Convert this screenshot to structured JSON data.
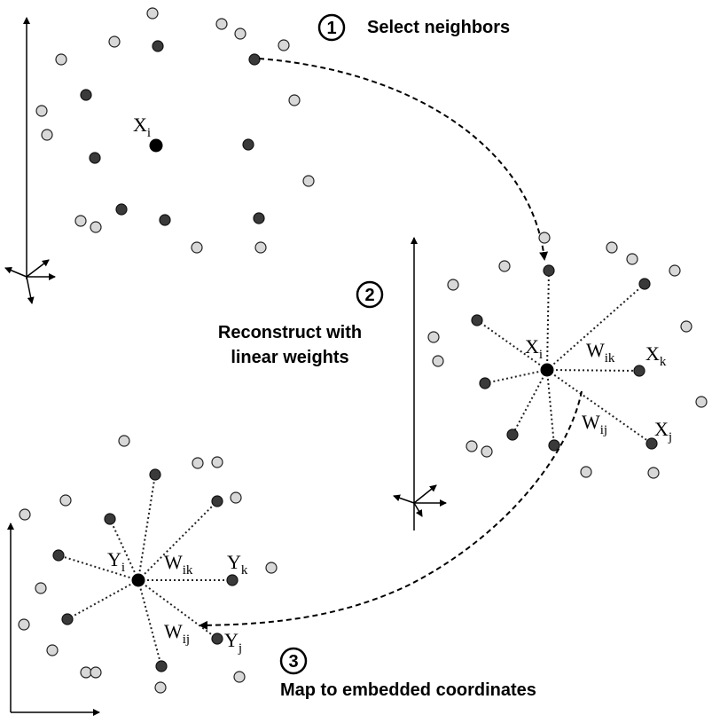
{
  "steps": [
    {
      "number": "1",
      "label": "Select neighbors"
    },
    {
      "number": "2",
      "label_line1": "Reconstruct with",
      "label_line2": "linear weights"
    },
    {
      "number": "3",
      "label": "Map to embedded coordinates"
    }
  ],
  "panel1": {
    "center_main": "X",
    "center_sub": "i"
  },
  "panel2": {
    "center_main": "X",
    "center_sub": "i",
    "w_ik_main": "W",
    "w_ik_sub": "ik",
    "w_ij_main": "W",
    "w_ij_sub": "ij",
    "xk_main": "X",
    "xk_sub": "k",
    "xj_main": "X",
    "xj_sub": "j"
  },
  "panel3": {
    "center_main": "Y",
    "center_sub": "i",
    "w_ik_main": "W",
    "w_ik_sub": "ik",
    "w_ij_main": "W",
    "w_ij_sub": "ij",
    "yk_main": "Y",
    "yk_sub": "k",
    "yj_main": "Y",
    "yj_sub": "j"
  },
  "colors": {
    "light_point": "#d8d8d8",
    "dark_point": "#3a3a3a",
    "center_point": "#000000"
  }
}
